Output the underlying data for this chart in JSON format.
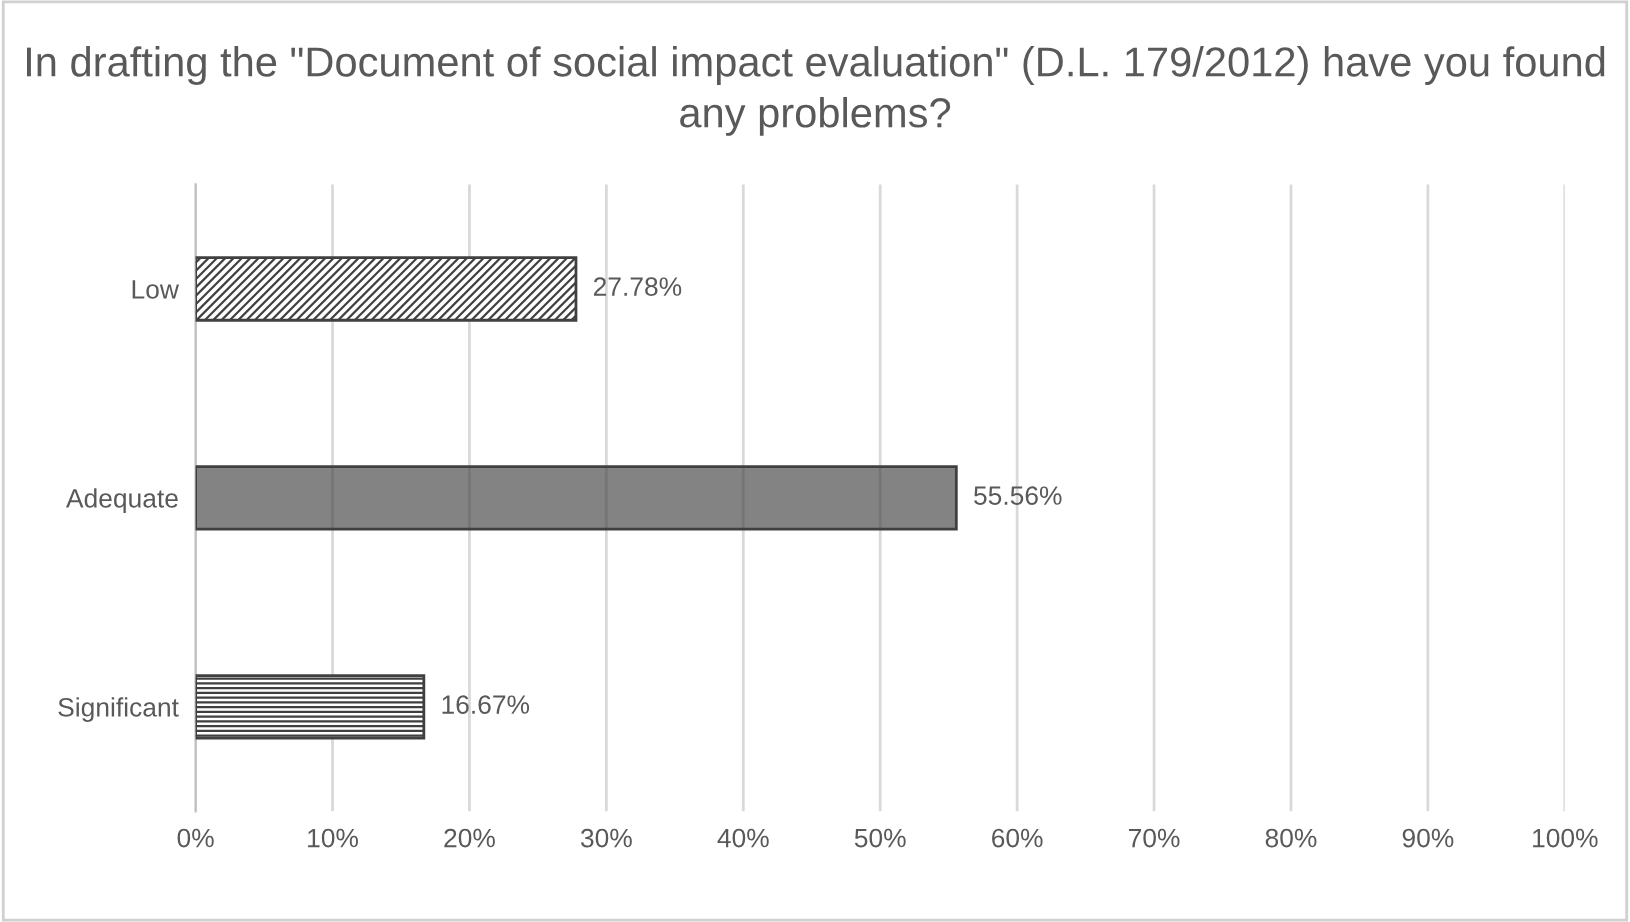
{
  "chart_data": {
    "type": "bar",
    "orientation": "horizontal",
    "title": "In drafting the \"Document of social impact evaluation\" (D.L. 179/2012) have you found any problems?",
    "categories": [
      "Low",
      "Adequate",
      "Significant"
    ],
    "values": [
      27.78,
      55.56,
      16.67
    ],
    "value_labels": [
      "27.78%",
      "55.56%",
      "16.67%"
    ],
    "colors": [
      "#404040",
      "#404040",
      "#404040"
    ],
    "xlim": [
      0,
      100
    ],
    "xticks": [
      {
        "value": 0,
        "label": "0%"
      },
      {
        "value": 10,
        "label": "10%"
      },
      {
        "value": 20,
        "label": "20%"
      },
      {
        "value": 30,
        "label": "30%"
      },
      {
        "value": 40,
        "label": "40%"
      },
      {
        "value": 50,
        "label": "50%"
      },
      {
        "value": 60,
        "label": "60%"
      },
      {
        "value": 70,
        "label": "70%"
      },
      {
        "value": 80,
        "label": "80%"
      },
      {
        "value": 90,
        "label": "90%"
      },
      {
        "value": 100,
        "label": "100%"
      }
    ],
    "grid": "x",
    "legend": false
  }
}
